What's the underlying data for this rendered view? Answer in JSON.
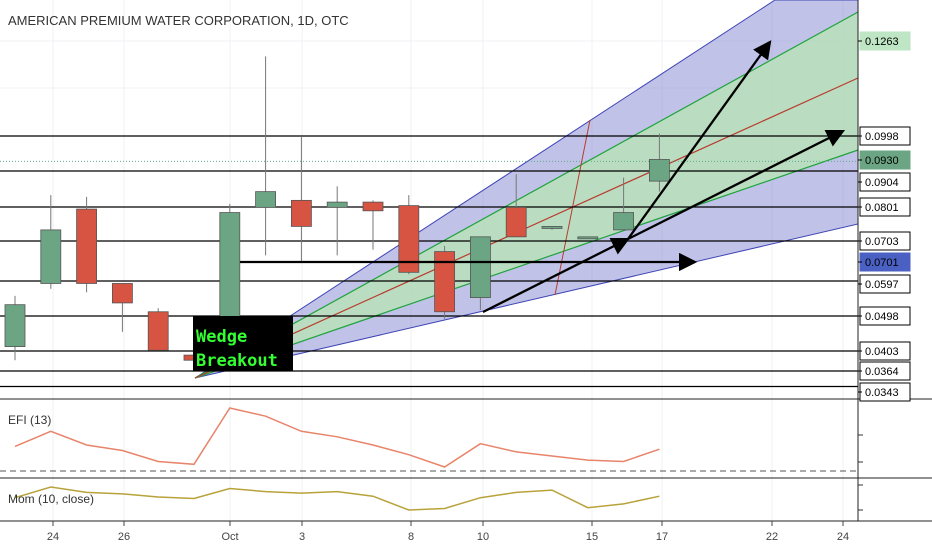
{
  "title": "AMERICAN PREMIUM WATER CORPORATION, 1D, OTC",
  "chart_data": [
    {
      "type": "candlestick",
      "title": "AMERICAN PREMIUM WATER CORPORATION, 1D, OTC",
      "price_labels": [
        "0.1263",
        "0.0998",
        "0.0930",
        "0.0904",
        "0.0801",
        "0.0703",
        "0.0701",
        "0.0597",
        "0.0498",
        "0.0403",
        "0.0364",
        "0.0343"
      ],
      "horizontal_levels": [
        0.0998,
        0.0904,
        0.0801,
        0.0703,
        0.0597,
        0.0498,
        0.0403,
        0.0364,
        0.0343
      ],
      "last_price": 0.093,
      "highlight_price": 0.0701,
      "x_tick_labels": [
        "24",
        "26",
        "Oct",
        "3",
        "8",
        "10",
        "15",
        "17",
        "22",
        "24"
      ],
      "candles": [
        {
          "open": 0.0415,
          "high": 0.0555,
          "low": 0.0385,
          "close": 0.053
        },
        {
          "open": 0.059,
          "high": 0.0835,
          "low": 0.0575,
          "close": 0.0735
        },
        {
          "open": 0.0795,
          "high": 0.083,
          "low": 0.0565,
          "close": 0.059
        },
        {
          "open": 0.059,
          "high": 0.059,
          "low": 0.0455,
          "close": 0.0535
        },
        {
          "open": 0.051,
          "high": 0.052,
          "low": 0.0405,
          "close": 0.0405
        },
        {
          "open": 0.0395,
          "high": 0.04,
          "low": 0.037,
          "close": 0.0385
        },
        {
          "open": 0.0385,
          "high": 0.081,
          "low": 0.0375,
          "close": 0.0785
        },
        {
          "open": 0.08,
          "high": 0.122,
          "low": 0.0665,
          "close": 0.0845
        },
        {
          "open": 0.082,
          "high": 0.0995,
          "low": 0.065,
          "close": 0.0745
        },
        {
          "open": 0.08,
          "high": 0.086,
          "low": 0.0665,
          "close": 0.0815
        },
        {
          "open": 0.0815,
          "high": 0.082,
          "low": 0.068,
          "close": 0.079
        },
        {
          "open": 0.0805,
          "high": 0.0835,
          "low": 0.0615,
          "close": 0.062
        },
        {
          "open": 0.0675,
          "high": 0.069,
          "low": 0.049,
          "close": 0.051
        },
        {
          "open": 0.055,
          "high": 0.071,
          "low": 0.0515,
          "close": 0.0715
        },
        {
          "open": 0.08,
          "high": 0.0895,
          "low": 0.0715,
          "close": 0.0715
        },
        {
          "open": 0.0745,
          "high": 0.0745,
          "low": 0.0735,
          "close": 0.0745
        },
        {
          "open": 0.0715,
          "high": 0.0715,
          "low": 0.071,
          "close": 0.0715
        },
        {
          "open": 0.0735,
          "high": 0.0885,
          "low": 0.0735,
          "close": 0.0785
        },
        {
          "open": 0.0875,
          "high": 0.1005,
          "low": 0.0845,
          "close": 0.0935
        }
      ],
      "annotation_text": [
        "Wedge",
        "Breakout"
      ],
      "colors": {
        "up": "#6ba583",
        "down": "#d75442",
        "wedge_outer": "#8c8fd6",
        "wedge_inner": "#b8e6b4",
        "wedge_edge_blue": "#3f46b5",
        "wedge_edge_green": "#1fa33c",
        "median": "#b83c2e"
      }
    },
    {
      "type": "line",
      "title": "EFI (13)",
      "values": [
        -0.6,
        0.5,
        -0.5,
        -0.9,
        -1.7,
        -1.9,
        2.2,
        1.6,
        0.5,
        0.1,
        -0.5,
        -1.2,
        -2.1,
        -0.4,
        -1.0,
        -1.3,
        -1.6,
        -1.7,
        -0.8
      ],
      "color": "#e8846a"
    },
    {
      "type": "line",
      "title": "Mom (10, close)",
      "values": [
        -0.004,
        0.01,
        0.003,
        0.001,
        -0.003,
        -0.005,
        0.008,
        0.004,
        0.002,
        0.004,
        -0.002,
        -0.02,
        -0.018,
        -0.004,
        0.003,
        0.006,
        -0.017,
        -0.012,
        -0.002
      ],
      "color": "#b8a23a"
    }
  ]
}
